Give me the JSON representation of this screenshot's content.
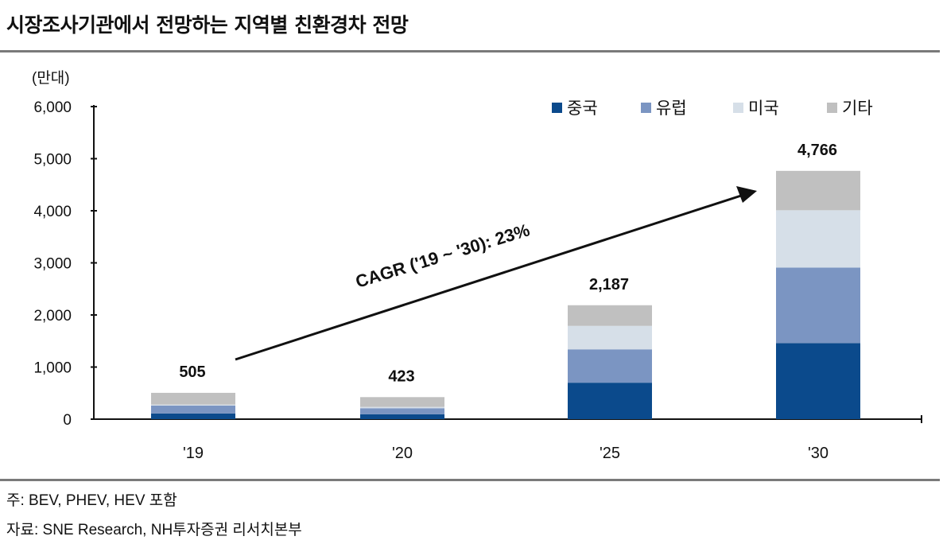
{
  "title": "시장조사기관에서 전망하는 지역별 친환경차 전망",
  "note": "주: BEV, PHEV, HEV 포함",
  "source": "자료: SNE Research, NH투자증권 리서치본부",
  "chart_data": {
    "type": "bar",
    "stacked": true,
    "unit_label": "(만대)",
    "categories": [
      "'19",
      "'20",
      "'25",
      "'30"
    ],
    "series": [
      {
        "name": "중국",
        "color": "#0b4a8c",
        "values": [
          110,
          95,
          700,
          1460
        ]
      },
      {
        "name": "유럽",
        "color": "#7b95c2",
        "values": [
          150,
          115,
          640,
          1450
        ]
      },
      {
        "name": "미국",
        "color": "#d6dfe8",
        "values": [
          20,
          25,
          450,
          1100
        ]
      },
      {
        "name": "기타",
        "color": "#c0c0c0",
        "values": [
          225,
          188,
          397,
          756
        ]
      }
    ],
    "totals": [
      "505",
      "423",
      "2,187",
      "4,766"
    ],
    "ylim": [
      0,
      6000
    ],
    "yticks": [
      "0",
      "1,000",
      "2,000",
      "3,000",
      "4,000",
      "5,000",
      "6,000"
    ],
    "annotation": "CAGR ('19 ~ '30):  23%",
    "legend_position": "top-right",
    "grid": false
  }
}
